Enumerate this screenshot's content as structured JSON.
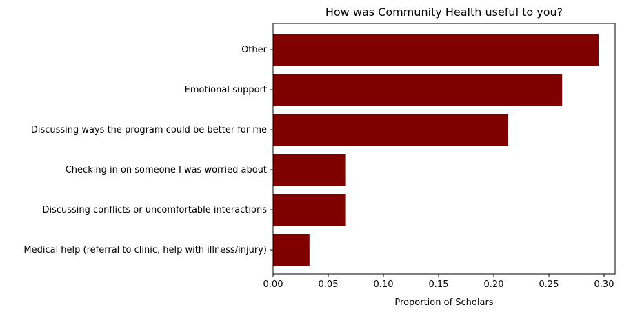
{
  "chart_data": {
    "type": "bar",
    "orientation": "horizontal",
    "title": "How was Community Health useful to you?",
    "xlabel": "Proportion of Scholars",
    "ylabel": "",
    "categories": [
      "Other",
      "Emotional support",
      "Discussing ways the program could be better for me",
      "Checking in on someone I was worried about",
      "Discussing conflicts or uncomfortable interactions",
      "Medical help (referral to clinic, help with illness/injury)"
    ],
    "values": [
      0.295,
      0.262,
      0.213,
      0.066,
      0.066,
      0.033
    ],
    "xlim": [
      0,
      0.31
    ],
    "xticks": [
      0.0,
      0.05,
      0.1,
      0.15,
      0.2,
      0.25,
      0.3
    ],
    "xtick_labels": [
      "0.00",
      "0.05",
      "0.10",
      "0.15",
      "0.20",
      "0.25",
      "0.30"
    ],
    "bar_color": "#800000",
    "grid": false,
    "legend": "none"
  }
}
